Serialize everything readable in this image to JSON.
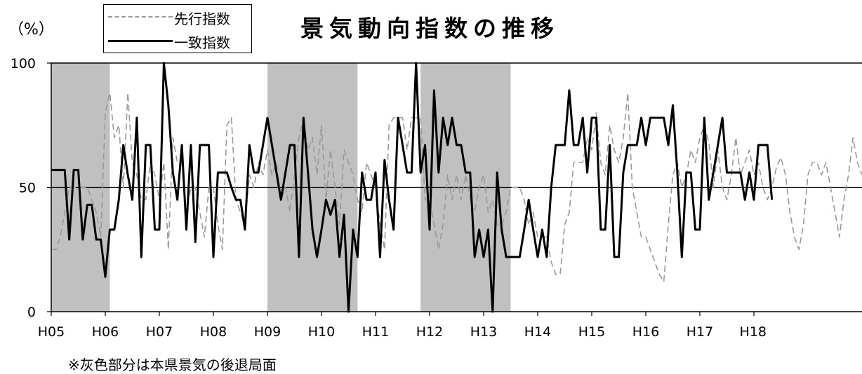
{
  "unit_label": "（%）",
  "note": "※灰色部分は本県景気の後退局面",
  "chart_data": {
    "type": "line",
    "title": "景気動向指数の推移",
    "xlabel": "",
    "ylabel": "（%）",
    "ylim": [
      0,
      100
    ],
    "y_ticks": [
      0,
      50,
      100
    ],
    "x_start": "H05",
    "x_ticks": [
      "H05",
      "H06",
      "H07",
      "H08",
      "H09",
      "H10",
      "H11",
      "H12",
      "H13",
      "H14",
      "H15",
      "H16",
      "H17",
      "H18"
    ],
    "reference_line": 50,
    "recessions": [
      {
        "start": "H05",
        "end": "H06"
      },
      {
        "start": "H09",
        "end": "H11"
      },
      {
        "start": "H12",
        "end": "H14"
      }
    ],
    "recession_months": [
      [
        0,
        13
      ],
      [
        48,
        68
      ],
      [
        82,
        102
      ]
    ],
    "colors": {
      "leading": "#999999",
      "coincident": "#000000",
      "recession": "#c0c0c0"
    },
    "series": [
      {
        "name": "先行指数",
        "style": "dashed",
        "values": [
          25,
          25,
          30,
          40,
          50,
          50,
          50,
          50,
          50,
          45,
          40,
          30,
          80,
          88,
          70,
          75,
          50,
          88,
          60,
          55,
          45,
          45,
          60,
          55,
          45,
          60,
          25,
          70,
          60,
          60,
          40,
          50,
          50,
          40,
          30,
          50,
          50,
          35,
          25,
          75,
          78,
          45,
          40,
          35,
          55,
          50,
          60,
          55,
          65,
          55,
          60,
          45,
          50,
          40,
          55,
          70,
          78,
          65,
          70,
          55,
          75,
          45,
          65,
          50,
          35,
          65,
          60,
          55,
          45,
          40,
          60,
          55,
          50,
          35,
          25,
          75,
          78,
          78,
          78,
          65,
          78,
          78,
          78,
          45,
          45,
          35,
          25,
          35,
          55,
          45,
          55,
          45,
          55,
          45,
          40,
          50,
          55,
          40,
          45,
          35,
          35,
          40,
          50,
          50,
          50,
          45,
          35,
          40,
          30,
          30,
          30,
          20,
          15,
          15,
          35,
          40,
          60,
          60,
          60,
          70,
          65,
          80,
          60,
          55,
          75,
          65,
          60,
          70,
          88,
          50,
          40,
          30,
          30,
          25,
          20,
          15,
          12,
          35,
          55,
          60,
          50,
          55,
          65,
          60,
          70,
          75,
          68,
          50,
          65,
          50,
          45,
          55,
          70,
          55,
          60,
          65,
          55,
          60,
          50,
          45,
          50,
          58,
          62,
          55,
          40,
          30,
          25,
          35,
          55,
          60,
          60,
          55,
          60,
          50,
          40,
          30,
          45,
          55,
          70,
          60,
          55
        ]
      },
      {
        "name": "一致指数",
        "style": "solid",
        "values": [
          57,
          57,
          57,
          57,
          29,
          57,
          57,
          29,
          43,
          43,
          29,
          29,
          14,
          33,
          33,
          45,
          67,
          55,
          45,
          78,
          22,
          67,
          67,
          33,
          33,
          100,
          83,
          56,
          45,
          67,
          33,
          67,
          28,
          67,
          67,
          67,
          22,
          56,
          56,
          56,
          50,
          45,
          45,
          33,
          67,
          56,
          56,
          67,
          78,
          67,
          56,
          45,
          56,
          67,
          67,
          22,
          78,
          56,
          33,
          22,
          33,
          45,
          39,
          45,
          22,
          39,
          0,
          33,
          22,
          56,
          45,
          45,
          56,
          22,
          61,
          45,
          33,
          78,
          67,
          56,
          56,
          100,
          56,
          67,
          33,
          89,
          56,
          78,
          67,
          78,
          67,
          67,
          56,
          56,
          22,
          33,
          22,
          33,
          0,
          56,
          33,
          22,
          22,
          22,
          22,
          33,
          45,
          33,
          22,
          33,
          22,
          50,
          67,
          67,
          67,
          89,
          67,
          67,
          78,
          56,
          78,
          78,
          33,
          33,
          67,
          22,
          22,
          56,
          67,
          67,
          67,
          78,
          67,
          78,
          78,
          78,
          78,
          67,
          83,
          56,
          22,
          56,
          56,
          33,
          33,
          78,
          45,
          56,
          67,
          78,
          56,
          56,
          56,
          56,
          45,
          56,
          45,
          67,
          67,
          67,
          45
        ]
      }
    ]
  }
}
